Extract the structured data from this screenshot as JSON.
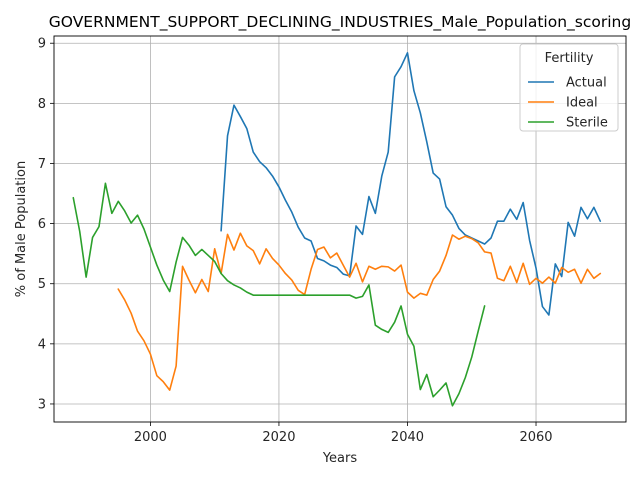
{
  "chart_data": {
    "type": "line",
    "title": "GOVERNMENT_SUPPORT_DECLINING_INDUSTRIES_Male_Population_scoring",
    "xlabel": "Years",
    "ylabel": "% of Male Population",
    "xlim": [
      1985,
      2074
    ],
    "ylim": [
      2.7,
      9.12
    ],
    "xticks": [
      2000,
      2020,
      2040,
      2060
    ],
    "yticks": [
      3,
      4,
      5,
      6,
      7,
      8,
      9
    ],
    "grid": true,
    "legend": {
      "title": "Fertility",
      "position": "top-right"
    },
    "series": [
      {
        "name": "Actual",
        "color": "#1f77b4",
        "x": [
          2011,
          2012,
          2013,
          2014,
          2015,
          2016,
          2017,
          2018,
          2019,
          2020,
          2021,
          2022,
          2023,
          2024,
          2025,
          2026,
          2027,
          2028,
          2029,
          2030,
          2031,
          2032,
          2033,
          2034,
          2035,
          2036,
          2037,
          2038,
          2039,
          2040,
          2041,
          2042,
          2043,
          2044,
          2045,
          2046,
          2047,
          2048,
          2049,
          2050,
          2051,
          2052,
          2053,
          2054,
          2055,
          2056,
          2057,
          2058,
          2059,
          2060,
          2061,
          2062,
          2063,
          2064,
          2065,
          2066,
          2067,
          2068,
          2069,
          2070
        ],
        "values": [
          5.88,
          7.46,
          7.97,
          7.78,
          7.58,
          7.19,
          7.03,
          6.93,
          6.79,
          6.61,
          6.39,
          6.19,
          5.94,
          5.76,
          5.71,
          5.42,
          5.38,
          5.31,
          5.27,
          5.16,
          5.13,
          5.96,
          5.82,
          6.45,
          6.17,
          6.79,
          7.19,
          8.44,
          8.61,
          8.84,
          8.21,
          7.84,
          7.36,
          6.84,
          6.74,
          6.28,
          6.14,
          5.92,
          5.81,
          5.76,
          5.71,
          5.66,
          5.76,
          6.04,
          6.04,
          6.24,
          6.07,
          6.35,
          5.72,
          5.26,
          4.62,
          4.48,
          5.33,
          5.12,
          6.02,
          5.79,
          6.27,
          6.08,
          6.27,
          6.04
        ]
      },
      {
        "name": "Ideal",
        "color": "#ff7f0e",
        "x": [
          1995,
          1996,
          1997,
          1998,
          1999,
          2000,
          2001,
          2002,
          2003,
          2004,
          2005,
          2006,
          2007,
          2008,
          2009,
          2010,
          2011,
          2012,
          2013,
          2014,
          2015,
          2016,
          2017,
          2018,
          2019,
          2020,
          2021,
          2022,
          2023,
          2024,
          2025,
          2026,
          2027,
          2028,
          2029,
          2030,
          2031,
          2032,
          2033,
          2034,
          2035,
          2036,
          2037,
          2038,
          2039,
          2040,
          2041,
          2042,
          2043,
          2044,
          2045,
          2046,
          2047,
          2048,
          2049,
          2050,
          2051,
          2052,
          2053,
          2054,
          2055,
          2056,
          2057,
          2058,
          2059,
          2060,
          2061,
          2062,
          2063,
          2064,
          2065,
          2066,
          2067,
          2068,
          2069,
          2070
        ],
        "values": [
          4.91,
          4.73,
          4.51,
          4.21,
          4.05,
          3.83,
          3.47,
          3.37,
          3.23,
          3.63,
          5.29,
          5.06,
          4.85,
          5.07,
          4.87,
          5.58,
          5.17,
          5.82,
          5.56,
          5.84,
          5.63,
          5.55,
          5.33,
          5.58,
          5.42,
          5.31,
          5.17,
          5.06,
          4.89,
          4.82,
          5.24,
          5.57,
          5.61,
          5.43,
          5.51,
          5.31,
          5.11,
          5.34,
          5.03,
          5.29,
          5.24,
          5.29,
          5.28,
          5.21,
          5.31,
          4.86,
          4.76,
          4.84,
          4.81,
          5.07,
          5.21,
          5.47,
          5.81,
          5.74,
          5.79,
          5.75,
          5.68,
          5.53,
          5.51,
          5.09,
          5.05,
          5.29,
          5.02,
          5.34,
          4.99,
          5.09,
          5.01,
          5.11,
          5.01,
          5.27,
          5.19,
          5.24,
          5.01,
          5.24,
          5.09,
          5.17
        ]
      },
      {
        "name": "Sterile",
        "color": "#2ca02c",
        "x": [
          1988,
          1989,
          1990,
          1991,
          1992,
          1993,
          1994,
          1995,
          1996,
          1997,
          1998,
          1999,
          2000,
          2001,
          2002,
          2003,
          2004,
          2005,
          2006,
          2007,
          2008,
          2009,
          2010,
          2011,
          2012,
          2013,
          2014,
          2015,
          2016,
          2017,
          2018,
          2019,
          2020,
          2021,
          2022,
          2023,
          2024,
          2025,
          2026,
          2027,
          2028,
          2029,
          2030,
          2031,
          2032,
          2033,
          2034,
          2035,
          2036,
          2037,
          2038,
          2039,
          2040,
          2041,
          2042,
          2043,
          2044,
          2045,
          2046,
          2047,
          2048,
          2049,
          2050,
          2051,
          2052
        ],
        "values": [
          6.43,
          5.87,
          5.11,
          5.77,
          5.95,
          6.67,
          6.17,
          6.37,
          6.21,
          6.01,
          6.14,
          5.91,
          5.61,
          5.31,
          5.06,
          4.87,
          5.36,
          5.77,
          5.64,
          5.47,
          5.57,
          5.47,
          5.37,
          5.17,
          5.05,
          4.98,
          4.93,
          4.86,
          4.81,
          4.81,
          4.81,
          4.81,
          4.81,
          4.81,
          4.81,
          4.81,
          4.81,
          4.81,
          4.81,
          4.81,
          4.81,
          4.81,
          4.81,
          4.81,
          4.76,
          4.79,
          4.98,
          4.31,
          4.24,
          4.19,
          4.36,
          4.63,
          4.16,
          3.96,
          3.24,
          3.49,
          3.12,
          3.23,
          3.35,
          2.97,
          3.17,
          3.44,
          3.78,
          4.21,
          4.63
        ]
      }
    ]
  }
}
